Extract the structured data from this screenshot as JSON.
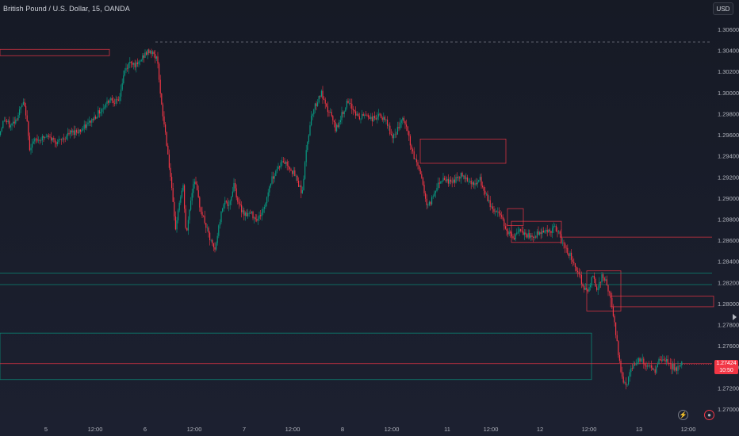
{
  "header": {
    "title": "British Pound / U.S. Dollar, 15, OANDA",
    "currency": "USD"
  },
  "last_price": {
    "value": "1.27424",
    "countdown": "10:50"
  },
  "colors": {
    "up": "#089981",
    "down": "#f23645",
    "zone_red": "#f23645",
    "zone_green": "#089981",
    "background": "#161a25",
    "axis_text": "#b2b5be"
  },
  "chart_data": {
    "type": "candlestick",
    "symbol": "British Pound / U.S. Dollar",
    "interval": "15",
    "exchange": "OANDA",
    "y_axis": {
      "side": "right",
      "range": [
        1.269,
        1.3075
      ],
      "ticks": [
        "1.30600",
        "1.30400",
        "1.30200",
        "1.30000",
        "1.29800",
        "1.29600",
        "1.29400",
        "1.29200",
        "1.29000",
        "1.28800",
        "1.28600",
        "1.28400",
        "1.28200",
        "1.28000",
        "1.27800",
        "1.27600",
        "1.27400",
        "1.27200",
        "1.27000"
      ]
    },
    "x_axis": {
      "ticks": [
        "5",
        "12:00",
        "6",
        "12:00",
        "7",
        "12:00",
        "8",
        "12:00",
        "11",
        "12:00",
        "12",
        "12:00",
        "13",
        "12:00"
      ]
    },
    "path": [
      [
        0,
        1.296
      ],
      [
        6,
        1.2975
      ],
      [
        14,
        1.2968
      ],
      [
        22,
        1.2976
      ],
      [
        30,
        1.299
      ],
      [
        34,
        1.298
      ],
      [
        38,
        1.2948
      ],
      [
        46,
        1.2955
      ],
      [
        60,
        1.2958
      ],
      [
        75,
        1.2953
      ],
      [
        90,
        1.2962
      ],
      [
        105,
        1.2965
      ],
      [
        118,
        1.2975
      ],
      [
        130,
        1.2985
      ],
      [
        140,
        1.2995
      ],
      [
        150,
        1.299
      ],
      [
        158,
        1.302
      ],
      [
        166,
        1.303
      ],
      [
        174,
        1.3025
      ],
      [
        182,
        1.3035
      ],
      [
        190,
        1.304
      ],
      [
        196,
        1.3035
      ],
      [
        200,
        1.303
      ],
      [
        204,
        1.299
      ],
      [
        210,
        1.296
      ],
      [
        216,
        1.292
      ],
      [
        222,
        1.287
      ],
      [
        228,
        1.29
      ],
      [
        232,
        1.291
      ],
      [
        236,
        1.2862
      ],
      [
        240,
        1.289
      ],
      [
        246,
        1.292
      ],
      [
        252,
        1.2895
      ],
      [
        258,
        1.288
      ],
      [
        266,
        1.286
      ],
      [
        272,
        1.285
      ],
      [
        278,
        1.2878
      ],
      [
        284,
        1.29
      ],
      [
        290,
        1.289
      ],
      [
        296,
        1.2915
      ],
      [
        302,
        1.2893
      ],
      [
        310,
        1.2885
      ],
      [
        318,
        1.2885
      ],
      [
        326,
        1.288
      ],
      [
        334,
        1.289
      ],
      [
        342,
        1.2915
      ],
      [
        350,
        1.2928
      ],
      [
        358,
        1.2935
      ],
      [
        366,
        1.293
      ],
      [
        374,
        1.292
      ],
      [
        382,
        1.2905
      ],
      [
        388,
        1.295
      ],
      [
        394,
        1.298
      ],
      [
        400,
        1.299
      ],
      [
        406,
        1.3
      ],
      [
        412,
        1.2985
      ],
      [
        418,
        1.298
      ],
      [
        424,
        1.2965
      ],
      [
        430,
        1.2975
      ],
      [
        438,
        1.299
      ],
      [
        446,
        1.2985
      ],
      [
        454,
        1.2975
      ],
      [
        462,
        1.298
      ],
      [
        470,
        1.2975
      ],
      [
        480,
        1.2978
      ],
      [
        490,
        1.297
      ],
      [
        496,
        1.2955
      ],
      [
        502,
        1.2965
      ],
      [
        510,
        1.2975
      ],
      [
        516,
        1.296
      ],
      [
        522,
        1.294
      ],
      [
        528,
        1.2932
      ],
      [
        534,
        1.2915
      ],
      [
        540,
        1.289
      ],
      [
        546,
        1.29
      ],
      [
        552,
        1.2912
      ],
      [
        560,
        1.292
      ],
      [
        568,
        1.2915
      ],
      [
        576,
        1.2918
      ],
      [
        584,
        1.2922
      ],
      [
        592,
        1.2918
      ],
      [
        600,
        1.2912
      ],
      [
        606,
        1.2918
      ],
      [
        612,
        1.2905
      ],
      [
        618,
        1.2895
      ],
      [
        624,
        1.2888
      ],
      [
        632,
        1.2885
      ],
      [
        640,
        1.287
      ],
      [
        648,
        1.2862
      ],
      [
        656,
        1.2868
      ],
      [
        664,
        1.2865
      ],
      [
        672,
        1.2862
      ],
      [
        680,
        1.2867
      ],
      [
        688,
        1.287
      ],
      [
        694,
        1.2868
      ],
      [
        700,
        1.2872
      ],
      [
        706,
        1.2865
      ],
      [
        712,
        1.2855
      ],
      [
        718,
        1.2848
      ],
      [
        724,
        1.284
      ],
      [
        730,
        1.283
      ],
      [
        736,
        1.2818
      ],
      [
        742,
        1.281
      ],
      [
        748,
        1.2825
      ],
      [
        754,
        1.2815
      ],
      [
        760,
        1.2825
      ],
      [
        766,
        1.282
      ],
      [
        772,
        1.28
      ],
      [
        778,
        1.277
      ],
      [
        782,
        1.2745
      ],
      [
        786,
        1.273
      ],
      [
        790,
        1.2722
      ],
      [
        796,
        1.2735
      ],
      [
        802,
        1.2745
      ],
      [
        808,
        1.2748
      ],
      [
        814,
        1.2742
      ],
      [
        820,
        1.274
      ],
      [
        826,
        1.2735
      ],
      [
        832,
        1.2745
      ],
      [
        838,
        1.2748
      ],
      [
        844,
        1.2742
      ],
      [
        850,
        1.274
      ],
      [
        856,
        1.2738
      ],
      [
        860,
        1.27424
      ]
    ],
    "zones": [
      {
        "color": "red",
        "x1": 0,
        "x2": 138,
        "top": 1.3041,
        "bottom": 1.3035
      },
      {
        "color": "red",
        "x1": 530,
        "x2": 638,
        "top": 1.2956,
        "bottom": 1.2933
      },
      {
        "color": "red",
        "x1": 640,
        "x2": 660,
        "top": 1.289,
        "bottom": 1.2874
      },
      {
        "color": "red",
        "x1": 645,
        "x2": 708,
        "top": 1.2878,
        "bottom": 1.2858
      },
      {
        "color": "red",
        "x1": 706,
        "x2": 898,
        "top": 1.2863,
        "bottom": 1.2862
      },
      {
        "color": "red",
        "x1": 740,
        "x2": 783,
        "top": 1.2831,
        "bottom": 1.2793
      },
      {
        "color": "red",
        "x1": 770,
        "x2": 900,
        "top": 1.2807,
        "bottom": 1.2797
      },
      {
        "color": "green",
        "x1": 0,
        "x2": 898,
        "top": 1.2829,
        "bottom": 1.2829
      },
      {
        "color": "green",
        "x1": 0,
        "x2": 898,
        "top": 1.2818,
        "bottom": 1.2818
      },
      {
        "color": "green",
        "x1": 0,
        "x2": 746,
        "top": 1.2772,
        "bottom": 1.2728
      },
      {
        "color": "red",
        "x1": 0,
        "x2": 898,
        "top": 1.2743,
        "bottom": 1.2743
      }
    ],
    "high_line": {
      "value": 1.3048,
      "x1": 196,
      "x2": 898
    }
  }
}
